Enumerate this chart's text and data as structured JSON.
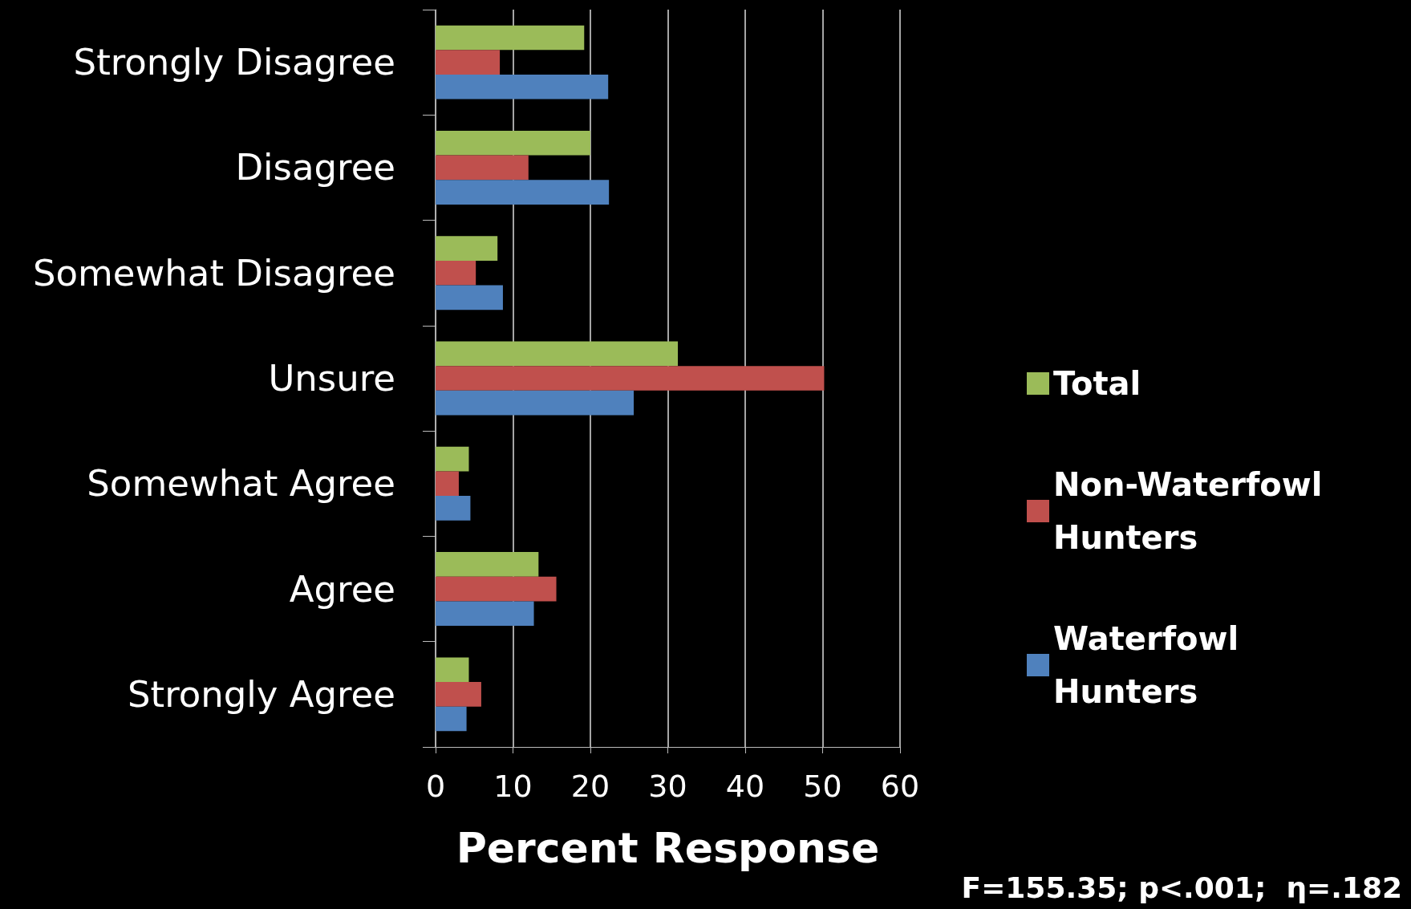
{
  "chart_data": {
    "type": "bar",
    "orientation": "horizontal",
    "xlabel": "Percent Response",
    "categories": [
      "Strongly Disagree",
      "Disagree",
      "Somewhat Disagree",
      "Unsure",
      "Somewhat Agree",
      "Agree",
      "Strongly Agree"
    ],
    "series": [
      {
        "name": "Total",
        "color": "#9bbb59",
        "values": [
          19.2,
          20.0,
          8.0,
          31.3,
          4.3,
          13.3,
          4.3
        ]
      },
      {
        "name": "Non-Waterfowl Hunters",
        "color": "#c0504d",
        "values": [
          8.3,
          12.0,
          5.2,
          50.2,
          3.0,
          15.6,
          5.9
        ]
      },
      {
        "name": "Waterfowl Hunters",
        "color": "#4f81bd",
        "values": [
          22.3,
          22.4,
          8.7,
          25.6,
          4.5,
          12.7,
          4.0
        ]
      }
    ],
    "xlim": [
      0,
      60
    ],
    "xticks": [
      0,
      10,
      20,
      30,
      40,
      50,
      60
    ],
    "grid": "x",
    "legend": "right",
    "annotations": [
      "F=155.35; p<.001;  η=.182"
    ]
  }
}
